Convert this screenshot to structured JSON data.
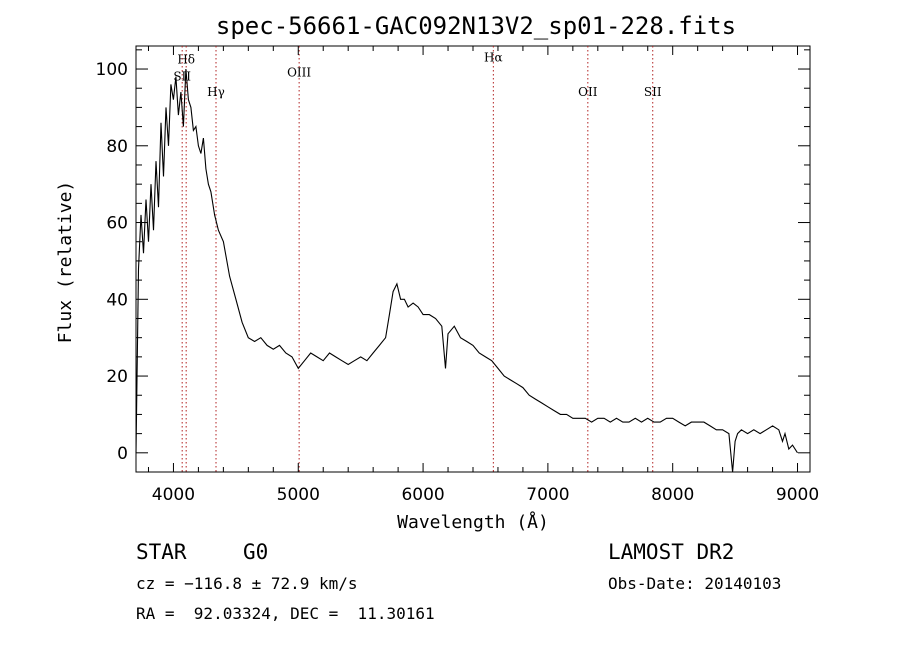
{
  "chart_data": {
    "type": "line",
    "title": "spec-56661-GAC092N13V2_sp01-228.fits",
    "xlabel": "Wavelength (Å)",
    "ylabel": "Flux (relative)",
    "xlim": [
      3700,
      9100
    ],
    "ylim": [
      -5,
      106
    ],
    "xticks": [
      4000,
      5000,
      6000,
      7000,
      8000,
      9000
    ],
    "yticks": [
      0,
      20,
      40,
      60,
      80,
      100
    ],
    "grid": false,
    "line_color": "#000000",
    "marker_color": "#b22222",
    "series": [
      {
        "x": [
          3700,
          3720,
          3740,
          3760,
          3780,
          3800,
          3820,
          3840,
          3860,
          3880,
          3900,
          3920,
          3940,
          3960,
          3980,
          4000,
          4020,
          4040,
          4060,
          4080,
          4100,
          4120,
          4140,
          4160,
          4180,
          4200,
          4220,
          4240,
          4260,
          4280,
          4300,
          4330,
          4360,
          4400,
          4450,
          4500,
          4550,
          4600,
          4650,
          4700,
          4750,
          4800,
          4850,
          4900,
          4950,
          5000,
          5050,
          5100,
          5150,
          5200,
          5250,
          5300,
          5350,
          5400,
          5450,
          5500,
          5550,
          5600,
          5650,
          5700,
          5730,
          5760,
          5790,
          5820,
          5850,
          5880,
          5920,
          5960,
          6000,
          6050,
          6100,
          6150,
          6180,
          6200,
          6250,
          6300,
          6350,
          6400,
          6450,
          6500,
          6550,
          6600,
          6650,
          6700,
          6750,
          6800,
          6850,
          6900,
          6950,
          7000,
          7050,
          7100,
          7150,
          7200,
          7250,
          7300,
          7350,
          7400,
          7450,
          7500,
          7550,
          7600,
          7650,
          7700,
          7750,
          7800,
          7850,
          7900,
          7950,
          8000,
          8050,
          8100,
          8150,
          8200,
          8250,
          8300,
          8350,
          8400,
          8450,
          8480,
          8500,
          8520,
          8550,
          8600,
          8650,
          8700,
          8750,
          8800,
          8850,
          8880,
          8900,
          8930,
          8960,
          9000
        ],
        "y": [
          0,
          48,
          62,
          52,
          66,
          55,
          70,
          58,
          76,
          64,
          86,
          72,
          90,
          80,
          96,
          92,
          98,
          88,
          94,
          85,
          100,
          92,
          90,
          84,
          85,
          80,
          78,
          82,
          74,
          70,
          68,
          62,
          58,
          55,
          46,
          40,
          34,
          30,
          29,
          30,
          28,
          27,
          28,
          26,
          25,
          22,
          24,
          26,
          25,
          24,
          26,
          25,
          24,
          23,
          24,
          25,
          24,
          26,
          28,
          30,
          36,
          42,
          44,
          40,
          40,
          38,
          39,
          38,
          36,
          36,
          35,
          33,
          22,
          31,
          33,
          30,
          29,
          28,
          26,
          25,
          24,
          22,
          20,
          19,
          18,
          17,
          15,
          14,
          13,
          12,
          11,
          10,
          10,
          9,
          9,
          9,
          8,
          9,
          9,
          8,
          9,
          8,
          8,
          9,
          8,
          9,
          8,
          8,
          9,
          9,
          8,
          7,
          8,
          8,
          8,
          7,
          6,
          6,
          5,
          -5,
          3,
          5,
          6,
          5,
          6,
          5,
          6,
          7,
          6,
          3,
          5,
          1,
          2,
          0
        ]
      }
    ],
    "line_markers": [
      {
        "label": "Hδ",
        "x": 4102,
        "label_y": 101.5
      },
      {
        "label": "SII",
        "x": 4070,
        "label_y": 97
      },
      {
        "label": "Hγ",
        "x": 4341,
        "label_y": 93
      },
      {
        "label": "OIII",
        "x": 5007,
        "label_y": 98
      },
      {
        "label": "Hα",
        "x": 6563,
        "label_y": 102
      },
      {
        "label": "OII",
        "x": 7320,
        "label_y": 93
      },
      {
        "label": "SII",
        "x": 7840,
        "label_y": 93
      }
    ]
  },
  "info": {
    "object_type": "STAR",
    "subclass": "G0",
    "survey": "LAMOST DR2",
    "cz_line": "cz = −116.8 ± 72.9 km/s",
    "obs_date": "Obs-Date: 20140103",
    "coords": "RA =  92.03324, DEC =  11.30161"
  }
}
